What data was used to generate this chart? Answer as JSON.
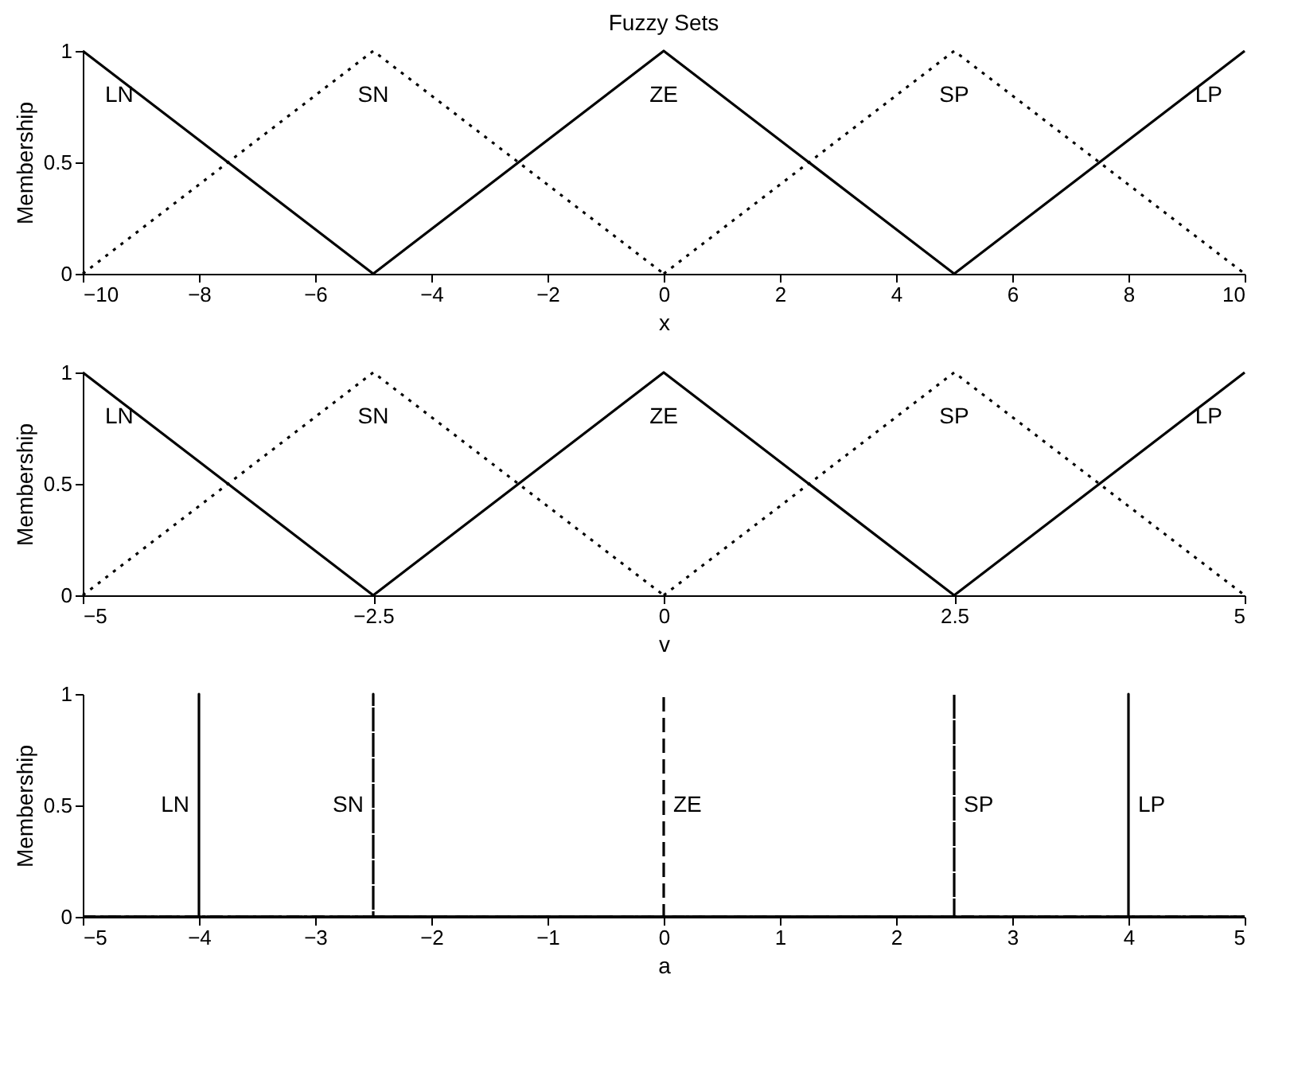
{
  "chart_data": [
    {
      "type": "line",
      "title": "Fuzzy Sets",
      "xlabel": "x",
      "ylabel": "Membership",
      "xlim": [
        -10,
        10
      ],
      "ylim": [
        0,
        1
      ],
      "xticks": [
        -10,
        -8,
        -6,
        -4,
        -2,
        0,
        2,
        4,
        6,
        8,
        10
      ],
      "yticks": [
        0,
        0.5,
        1
      ],
      "grid": false,
      "legend": false,
      "marker": "none",
      "series": [
        {
          "name": "LN",
          "color": "#000000",
          "line_style": "solid",
          "x": [
            -10,
            -5
          ],
          "values": [
            1,
            0
          ]
        },
        {
          "name": "SN",
          "color": "#000000",
          "line_style": "dotted",
          "x": [
            -10,
            -5,
            0
          ],
          "values": [
            0,
            1,
            0
          ]
        },
        {
          "name": "ZE",
          "color": "#000000",
          "line_style": "solid",
          "x": [
            -5,
            0,
            5
          ],
          "values": [
            0,
            1,
            0
          ]
        },
        {
          "name": "SP",
          "color": "#000000",
          "line_style": "dotted",
          "x": [
            0,
            5,
            10
          ],
          "values": [
            0,
            1,
            0
          ]
        },
        {
          "name": "LP",
          "color": "#000000",
          "line_style": "solid",
          "x": [
            5,
            10
          ],
          "values": [
            0,
            1
          ]
        }
      ]
    },
    {
      "type": "line",
      "xlabel": "v",
      "ylabel": "Membership",
      "xlim": [
        -5,
        5
      ],
      "ylim": [
        0,
        1
      ],
      "xticks": [
        -5,
        -2.5,
        0,
        2.5,
        5
      ],
      "yticks": [
        0,
        0.5,
        1
      ],
      "grid": false,
      "legend": false,
      "marker": "none",
      "series": [
        {
          "name": "LN",
          "color": "#000000",
          "line_style": "solid",
          "x": [
            -5,
            -2.5
          ],
          "values": [
            1,
            0
          ]
        },
        {
          "name": "SN",
          "color": "#000000",
          "line_style": "dotted",
          "x": [
            -5,
            -2.5,
            0
          ],
          "values": [
            0,
            1,
            0
          ]
        },
        {
          "name": "ZE",
          "color": "#000000",
          "line_style": "solid",
          "x": [
            -2.5,
            0,
            2.5
          ],
          "values": [
            0,
            1,
            0
          ]
        },
        {
          "name": "SP",
          "color": "#000000",
          "line_style": "dotted",
          "x": [
            0,
            2.5,
            5
          ],
          "values": [
            0,
            1,
            0
          ]
        },
        {
          "name": "LP",
          "color": "#000000",
          "line_style": "solid",
          "x": [
            2.5,
            5
          ],
          "values": [
            0,
            1
          ]
        }
      ]
    },
    {
      "type": "line",
      "xlabel": "a",
      "ylabel": "Membership",
      "xlim": [
        -5,
        5
      ],
      "ylim": [
        0,
        1
      ],
      "xticks": [
        -5,
        -4,
        -3,
        -2,
        -1,
        0,
        1,
        2,
        3,
        4,
        5
      ],
      "yticks": [
        0,
        0.5,
        1
      ],
      "grid": false,
      "legend": false,
      "marker": "none",
      "series": [
        {
          "name": "LN",
          "color": "#000000",
          "line_style": "solid",
          "x": [
            -5,
            -4,
            -4,
            -4,
            5
          ],
          "values": [
            0,
            0,
            1,
            0,
            0
          ]
        },
        {
          "name": "SN",
          "color": "#000000",
          "line_style": "dashdot",
          "x": [
            -5,
            -2.5,
            -2.5,
            -2.5,
            5
          ],
          "values": [
            0,
            0,
            1,
            0,
            0
          ]
        },
        {
          "name": "ZE",
          "color": "#000000",
          "line_style": "dashed",
          "x": [
            -5,
            0,
            0,
            0,
            5
          ],
          "values": [
            0,
            0,
            1,
            0,
            0
          ]
        },
        {
          "name": "SP",
          "color": "#000000",
          "line_style": "dashdot",
          "x": [
            -5,
            2.5,
            2.5,
            2.5,
            5
          ],
          "values": [
            0,
            0,
            1,
            0,
            0
          ]
        },
        {
          "name": "LP",
          "color": "#000000",
          "line_style": "solid",
          "x": [
            -5,
            4,
            4,
            4,
            5
          ],
          "values": [
            0,
            0,
            1,
            0,
            0
          ]
        }
      ]
    }
  ]
}
